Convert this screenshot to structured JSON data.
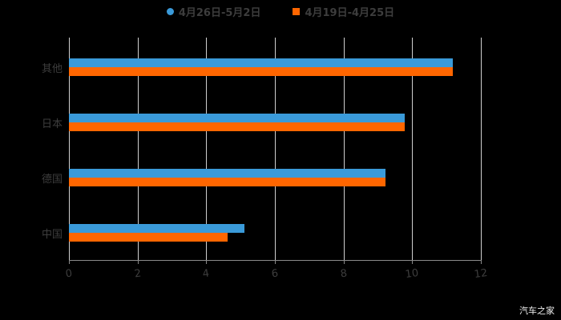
{
  "chart_data": {
    "type": "bar",
    "orientation": "horizontal",
    "title": "",
    "xlabel": "",
    "ylabel": "",
    "categories": [
      "其他",
      "日本",
      "德国",
      "中国"
    ],
    "series": [
      {
        "name": "4月26日-5月2日",
        "color": "#3a9ad9",
        "marker": "circle",
        "values": [
          11.18,
          9.78,
          9.22,
          5.11
        ]
      },
      {
        "name": "4月19日-4月25日",
        "color": "#ff6600",
        "marker": "square",
        "values": [
          11.18,
          9.78,
          9.22,
          4.62
        ]
      }
    ],
    "xlim": [
      0,
      12
    ],
    "x_ticks": [
      "0",
      "2",
      "4",
      "6",
      "8",
      "10",
      "12"
    ],
    "grid": "vertical",
    "legend_position": "top"
  },
  "legend": {
    "items": [
      {
        "label": "4月26日-5月2日",
        "color": "#3a9ad9"
      },
      {
        "label": "4月19日-4月25日",
        "color": "#ff6600"
      }
    ]
  },
  "watermark": "汽车之家"
}
